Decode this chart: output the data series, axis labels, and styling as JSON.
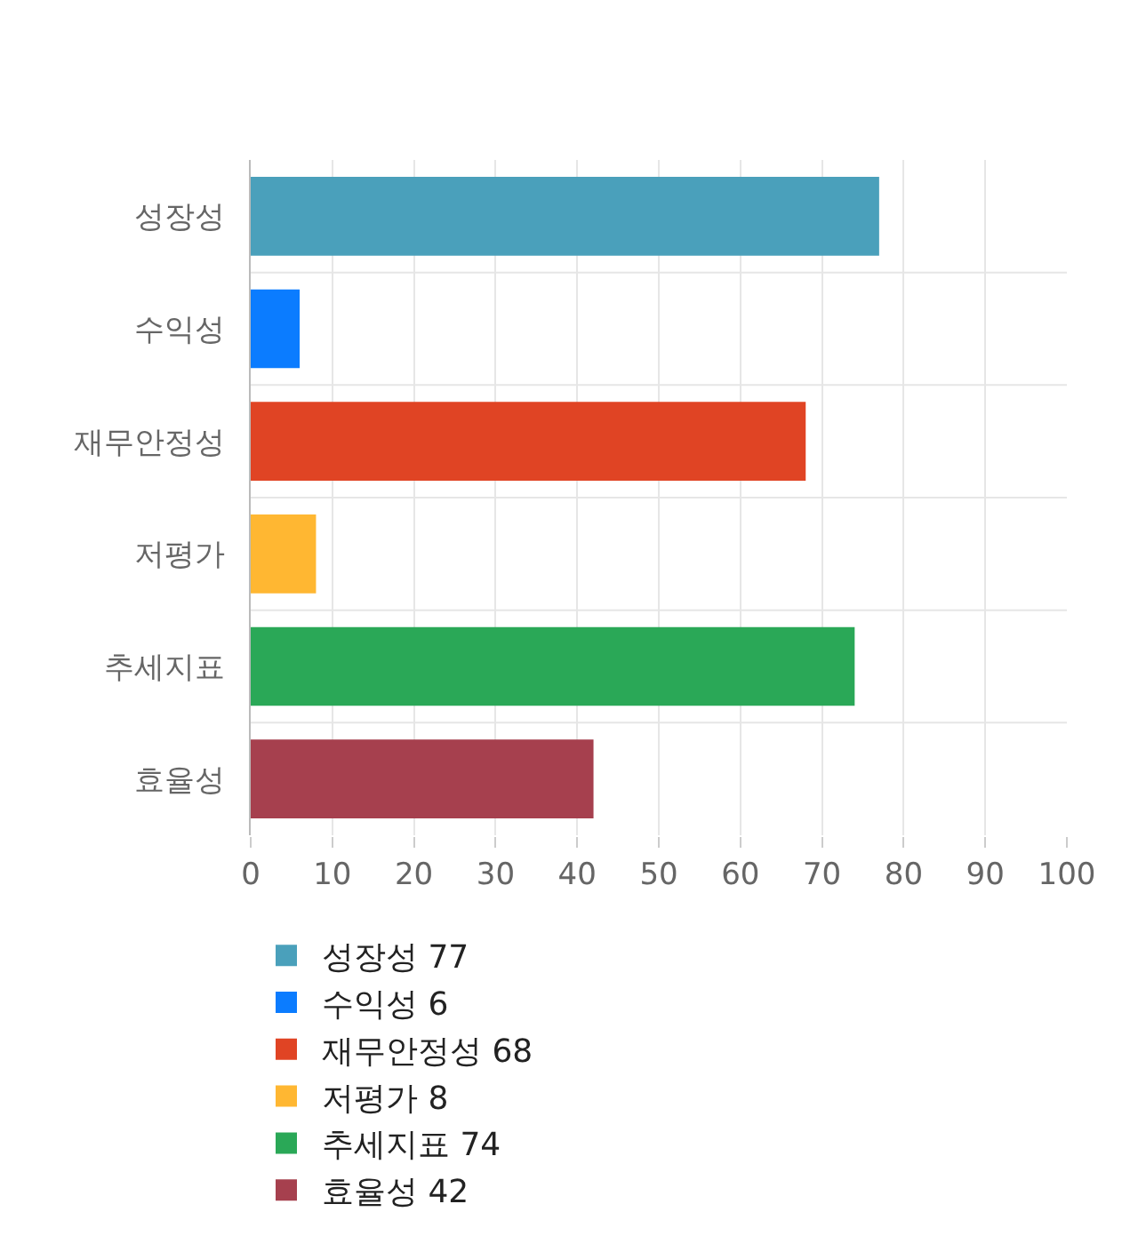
{
  "chart_data": {
    "type": "bar",
    "orientation": "horizontal",
    "categories": [
      "성장성",
      "수익성",
      "재무안정성",
      "저평가",
      "추세지표",
      "효율성"
    ],
    "series": [
      {
        "name": "성장성 77",
        "color": "#4aa0bb",
        "values": [
          77,
          null,
          null,
          null,
          null,
          null
        ]
      },
      {
        "name": "수익성 6",
        "color": "#0b7cff",
        "values": [
          null,
          6,
          null,
          null,
          null,
          null
        ]
      },
      {
        "name": "재무안정성 68",
        "color": "#e04424",
        "values": [
          null,
          null,
          68,
          null,
          null,
          null
        ]
      },
      {
        "name": "저평가 8",
        "color": "#ffb732",
        "values": [
          null,
          null,
          null,
          8,
          null,
          null
        ]
      },
      {
        "name": "추세지표 74",
        "color": "#2aa857",
        "values": [
          null,
          null,
          null,
          null,
          74,
          null
        ]
      },
      {
        "name": "효율성 42",
        "color": "#a6404e",
        "values": [
          null,
          null,
          null,
          null,
          null,
          42
        ]
      }
    ],
    "xlim": [
      0,
      100
    ],
    "xticks": [
      0,
      10,
      20,
      30,
      40,
      50,
      60,
      70,
      80,
      90,
      100
    ],
    "grid": "x",
    "legend": "bottom"
  }
}
